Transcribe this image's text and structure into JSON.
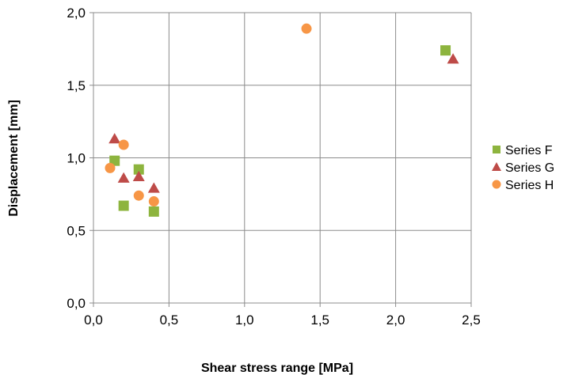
{
  "chart_data": {
    "type": "scatter",
    "title": "",
    "xlabel": "Shear stress range  [MPa]",
    "ylabel": "Displacement  [mm]",
    "xlim": [
      0,
      2.5
    ],
    "ylim": [
      0,
      2.0
    ],
    "xticks": [
      0,
      0.5,
      1.0,
      1.5,
      2.0,
      2.5
    ],
    "yticks": [
      0,
      0.5,
      1.0,
      1.5,
      2.0
    ],
    "xtick_labels": [
      "0,0",
      "0,5",
      "1,0",
      "1,5",
      "2,0",
      "2,5"
    ],
    "ytick_labels": [
      "0,0",
      "0,5",
      "1,0",
      "1,5",
      "2,0"
    ],
    "grid": true,
    "legend_position": "right",
    "series": [
      {
        "name": "Series F",
        "marker": "square",
        "color": "#8DB43E",
        "points": [
          [
            0.14,
            0.98
          ],
          [
            0.2,
            0.67
          ],
          [
            0.3,
            0.92
          ],
          [
            0.4,
            0.63
          ],
          [
            2.33,
            1.74
          ]
        ]
      },
      {
        "name": "Series G",
        "marker": "triangle",
        "color": "#BE4B48",
        "points": [
          [
            0.14,
            1.13
          ],
          [
            0.2,
            0.86
          ],
          [
            0.3,
            0.87
          ],
          [
            0.4,
            0.79
          ],
          [
            2.38,
            1.68
          ]
        ]
      },
      {
        "name": "Series H",
        "marker": "circle",
        "color": "#F79646",
        "points": [
          [
            0.11,
            0.93
          ],
          [
            0.2,
            1.09
          ],
          [
            0.3,
            0.74
          ],
          [
            0.4,
            0.7
          ],
          [
            1.41,
            1.89
          ]
        ]
      }
    ]
  }
}
